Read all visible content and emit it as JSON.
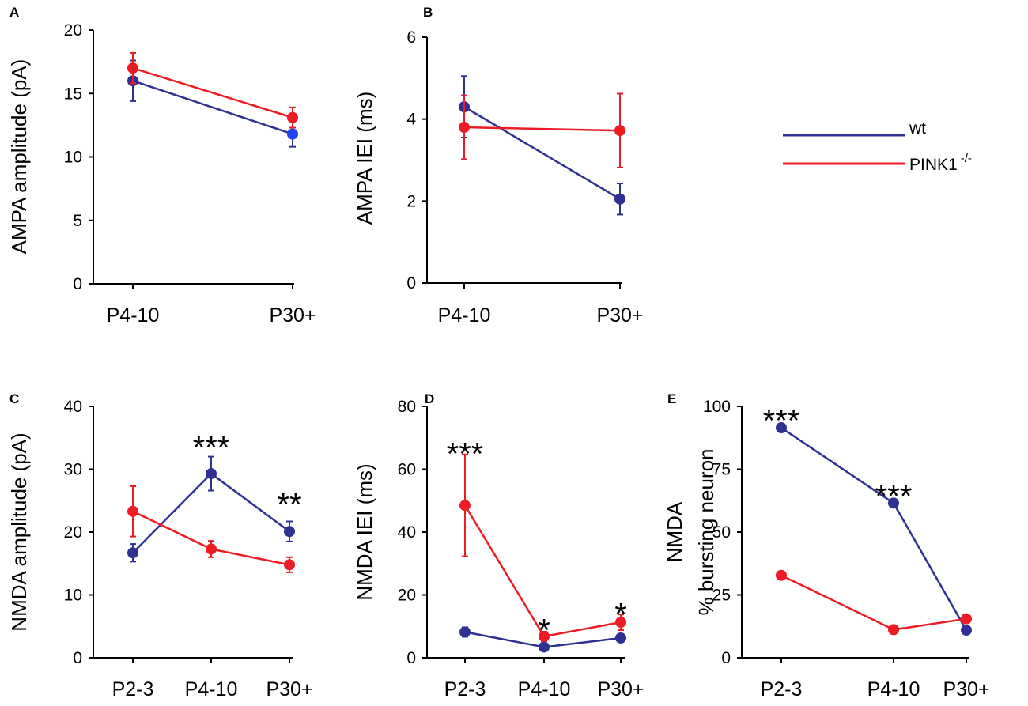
{
  "chart_data": [
    {
      "panel": "A",
      "type": "line",
      "ylabel": "AMPA amplitude (pA)",
      "ylim": [
        0,
        20
      ],
      "yticks": [
        "0",
        "5",
        "10",
        "15",
        "20"
      ],
      "categories": [
        "P4-10",
        "P30+"
      ],
      "series": [
        {
          "name": "wt",
          "color": "#2e3192",
          "end_color": "#1f44ee",
          "values": [
            16.0,
            11.8
          ],
          "errors": [
            1.6,
            1.0
          ]
        },
        {
          "name": "PINK1 -/-",
          "color": "#ed1c24",
          "values": [
            17.0,
            13.1
          ],
          "errors": [
            1.2,
            0.8
          ]
        }
      ],
      "annotations": []
    },
    {
      "panel": "B",
      "type": "line",
      "ylabel": "AMPA IEI (ms)",
      "ylim": [
        0,
        6
      ],
      "yticks": [
        "0",
        "2",
        "4",
        "6"
      ],
      "categories": [
        "P4-10",
        "P30+"
      ],
      "series": [
        {
          "name": "wt",
          "color": "#2e3192",
          "values": [
            4.3,
            2.05
          ],
          "errors": [
            0.75,
            0.38
          ]
        },
        {
          "name": "PINK1 -/-",
          "color": "#ed1c24",
          "values": [
            3.8,
            3.72
          ],
          "errors": [
            0.78,
            0.9
          ]
        }
      ],
      "annotations": []
    },
    {
      "panel": "C",
      "type": "line",
      "ylabel": "NMDA amplitude (pA)",
      "ylim": [
        0,
        40
      ],
      "yticks": [
        "0",
        "10",
        "20",
        "30",
        "40"
      ],
      "categories": [
        "P2-3",
        "P4-10",
        "P30+"
      ],
      "series": [
        {
          "name": "wt",
          "color": "#2e3192",
          "values": [
            16.7,
            29.3,
            20.1
          ],
          "errors": [
            1.4,
            2.7,
            1.6
          ]
        },
        {
          "name": "PINK1 -/-",
          "color": "#ed1c24",
          "values": [
            23.3,
            17.3,
            14.8
          ],
          "errors": [
            4.0,
            1.3,
            1.2
          ]
        }
      ],
      "annotations": [
        {
          "category_index": 1,
          "value": 34.5,
          "text": "***"
        },
        {
          "category_index": 2,
          "value": 25.5,
          "text": "**"
        }
      ]
    },
    {
      "panel": "D",
      "type": "line",
      "ylabel": "NMDA IEI (ms)",
      "ylim": [
        0,
        80
      ],
      "yticks": [
        "0",
        "20",
        "40",
        "60",
        "80"
      ],
      "categories": [
        "P2-3",
        "P4-10",
        "P30+"
      ],
      "series": [
        {
          "name": "wt",
          "color": "#2e3192",
          "values": [
            8.2,
            3.4,
            6.3
          ],
          "errors": [
            1.5,
            0.8,
            1.2
          ]
        },
        {
          "name": "PINK1 -/-",
          "color": "#ed1c24",
          "values": [
            48.5,
            6.8,
            11.3
          ],
          "errors": [
            16.2,
            1.5,
            2.5
          ]
        }
      ],
      "annotations": [
        {
          "category_index": 0,
          "value": 67,
          "text": "***"
        },
        {
          "category_index": 1,
          "value": 11,
          "text": "*"
        },
        {
          "category_index": 2,
          "value": 16,
          "text": "*"
        }
      ]
    },
    {
      "panel": "E",
      "type": "line",
      "ylabel": "NMDA",
      "ylabel2": "% bursting neuron",
      "ylim": [
        0,
        100
      ],
      "yticks": [
        "0",
        "25",
        "50",
        "75",
        "100"
      ],
      "categories": [
        "P2-3",
        "P4-10",
        "P30+"
      ],
      "series": [
        {
          "name": "wt",
          "color": "#2e3192",
          "values": [
            91.5,
            61.5,
            11.0
          ],
          "errors": [
            0,
            0,
            0
          ]
        },
        {
          "name": "PINK1 -/-",
          "color": "#ed1c24",
          "values": [
            32.8,
            11.2,
            15.5
          ],
          "errors": [
            0,
            0,
            0
          ]
        }
      ],
      "annotations": [
        {
          "category_index": 0,
          "value": 97,
          "text": "***"
        },
        {
          "category_index": 1,
          "value": 67,
          "text": "***"
        }
      ]
    }
  ],
  "legend": [
    {
      "name": "wt",
      "label": "wt",
      "color": "#2e3192"
    },
    {
      "name": "PINK1 -/-",
      "label": "PINK1",
      "sup": "-/-",
      "color": "#ed1c24"
    }
  ]
}
